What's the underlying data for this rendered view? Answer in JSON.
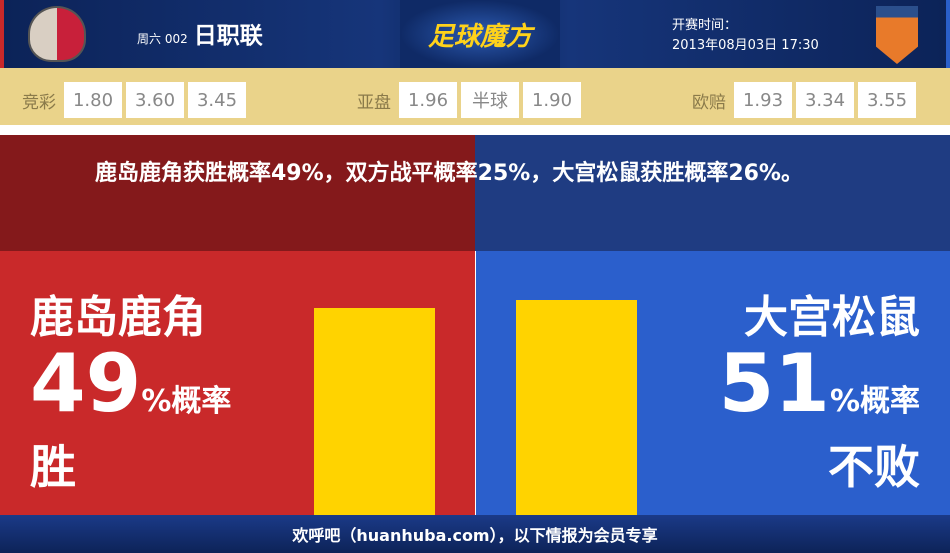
{
  "header": {
    "day": "周六 002",
    "league": "日职联",
    "brand": "足球魔方",
    "time_label": "开赛时间：",
    "time": "2013年08月03日 17:30",
    "home_logo": "kashima-antlers-logo",
    "away_logo": "omiya-ardija-logo"
  },
  "odds": {
    "jingcai": {
      "label": "竞彩",
      "values": [
        "1.80",
        "3.60",
        "3.45"
      ]
    },
    "yapan": {
      "label": "亚盘",
      "values": [
        "1.96",
        "半球",
        "1.90"
      ]
    },
    "oupei": {
      "label": "欧赔",
      "values": [
        "1.93",
        "3.34",
        "3.55"
      ]
    }
  },
  "summary": "鹿岛鹿角获胜概率49%，双方战平概率25%，大宫松鼠获胜概率26%。",
  "home": {
    "team": "鹿岛鹿角",
    "pct": "49",
    "unit": "%概率",
    "result": "胜",
    "bar_value": 49,
    "color": "#c9292a"
  },
  "away": {
    "team": "大宫松鼠",
    "pct": "51",
    "unit": "%概率",
    "result": "不败",
    "bar_value": 51,
    "color": "#2b5fcc"
  },
  "bar_color": "#ffd300",
  "footer": "欢呼吧（huanhuba.com），以下情报为会员专享"
}
